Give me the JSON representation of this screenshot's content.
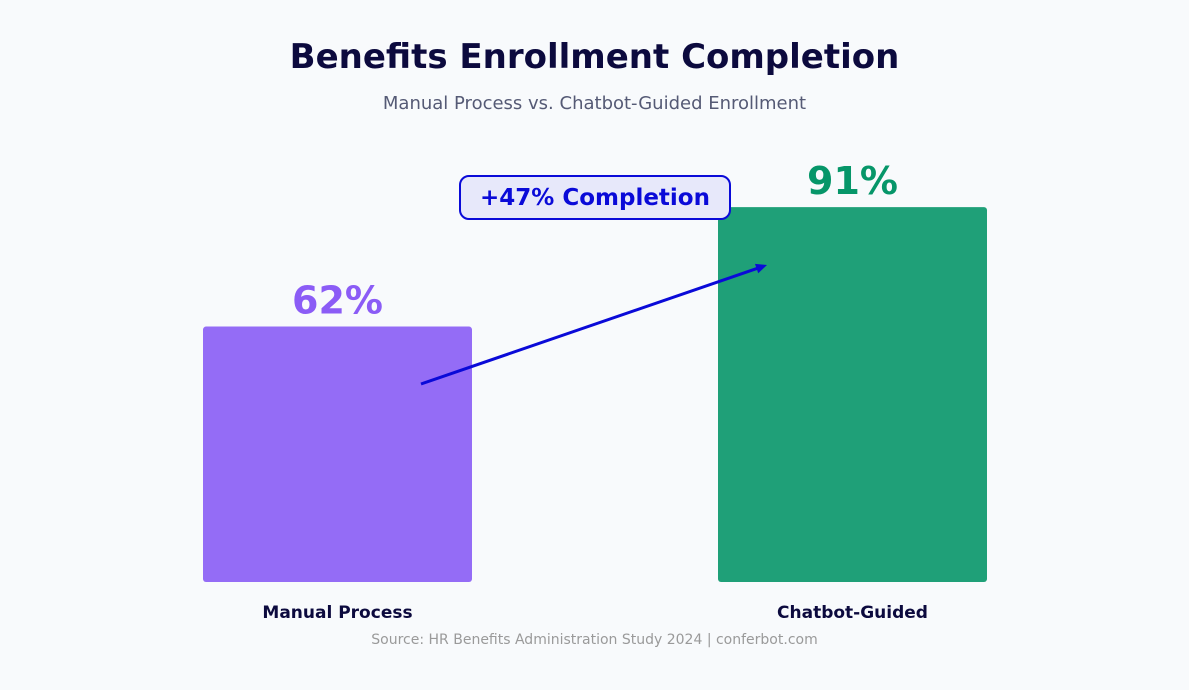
{
  "chart_data": {
    "type": "bar",
    "title": "Benefits Enrollment Completion",
    "subtitle": "Manual Process vs. Chatbot-Guided Enrollment",
    "categories": [
      "Manual Process",
      "Chatbot-Guided"
    ],
    "values": [
      62,
      91
    ],
    "value_labels": [
      "62%",
      "91%"
    ],
    "unit": "%",
    "ylim": [
      0,
      100
    ],
    "xlabel": "",
    "ylabel": "",
    "grid": false,
    "colors": [
      "#946cf6",
      "#1fa078"
    ],
    "value_label_colors": [
      "#8b5cf6",
      "#069669"
    ],
    "annotation": {
      "text": "+47% Completion",
      "color": "#0a0ad8",
      "background": "#e7e8fa"
    },
    "source": "Source: HR Benefits Administration Study 2024  |  conferbot.com"
  },
  "colors": {
    "title": "#0c0a3e",
    "subtitle": "#555a75",
    "source": "#9a9a9a",
    "background": "#f8fafc"
  }
}
